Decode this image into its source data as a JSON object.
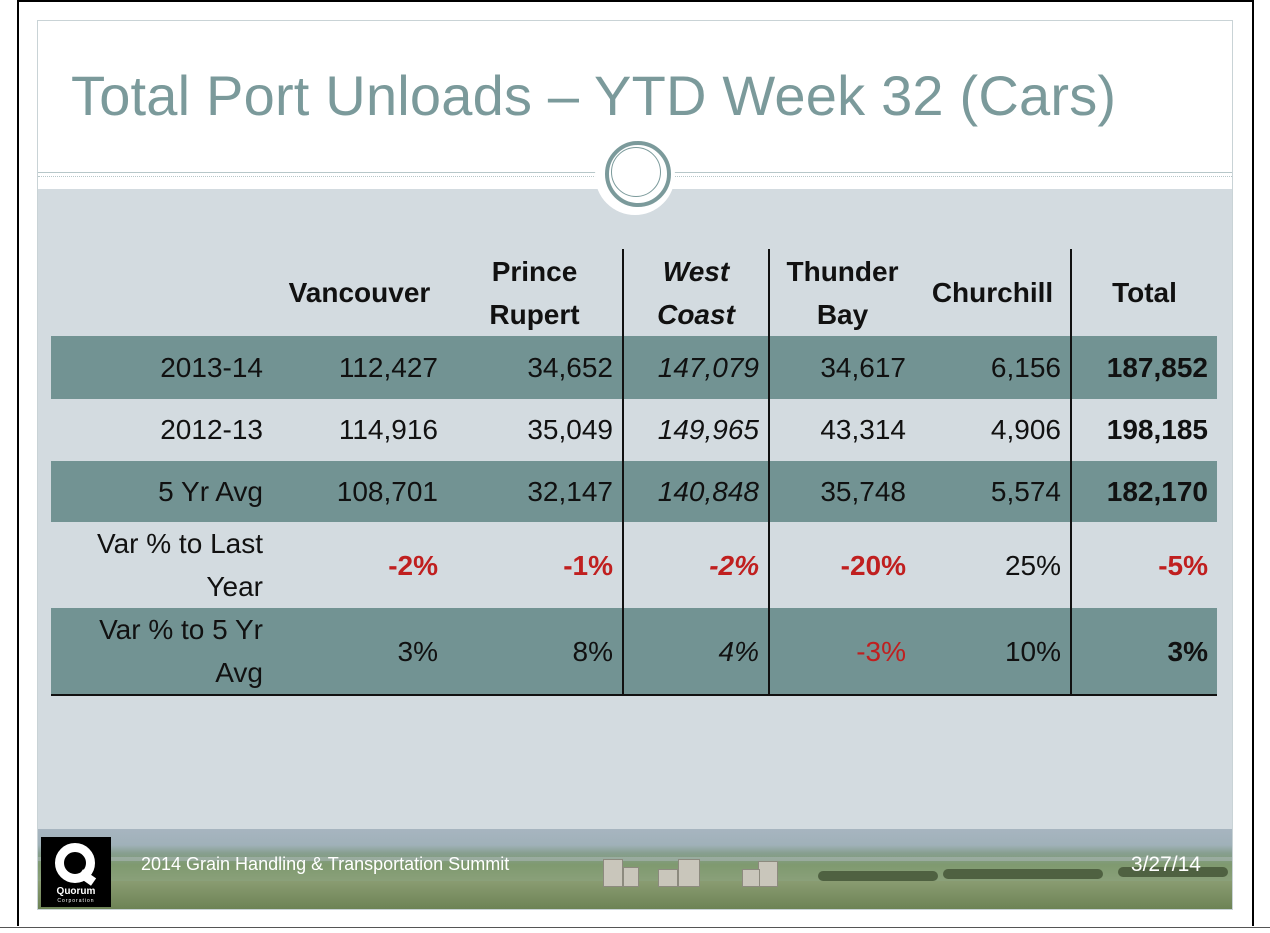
{
  "slide": {
    "title": "Total Port Unloads – YTD Week 32 (Cars)"
  },
  "table": {
    "headers": [
      "",
      "Vancouver",
      "Prince Rupert",
      "West Coast",
      "Thunder Bay",
      "Churchill",
      "Total"
    ],
    "rows": [
      {
        "label": "2013-14",
        "values": [
          "112,427",
          "34,652",
          "147,079",
          "34,617",
          "6,156",
          "187,852"
        ]
      },
      {
        "label": "2012-13",
        "values": [
          "114,916",
          "35,049",
          "149,965",
          "43,314",
          "4,906",
          "198,185"
        ]
      },
      {
        "label": "5 Yr Avg",
        "values": [
          "108,701",
          "32,147",
          "140,848",
          "35,748",
          "5,574",
          "182,170"
        ]
      },
      {
        "label": "Var % to Last Year",
        "values": [
          "-2%",
          "-1%",
          "-2%",
          "-20%",
          "25%",
          "-5%"
        ]
      },
      {
        "label": "Var % to 5 Yr Avg",
        "values": [
          "3%",
          "8%",
          "4%",
          "-3%",
          "10%",
          "3%"
        ]
      }
    ]
  },
  "footer": {
    "logo_text": "Quorum",
    "logo_subtext": "Corporation",
    "event": "2014 Grain Handling & Transportation Summit",
    "date": "3/27/14"
  },
  "colors": {
    "title": "#7b9a9b",
    "row_shade": "#729393",
    "negative": "#c01f1f",
    "slide_bg": "#d3dbe0"
  }
}
